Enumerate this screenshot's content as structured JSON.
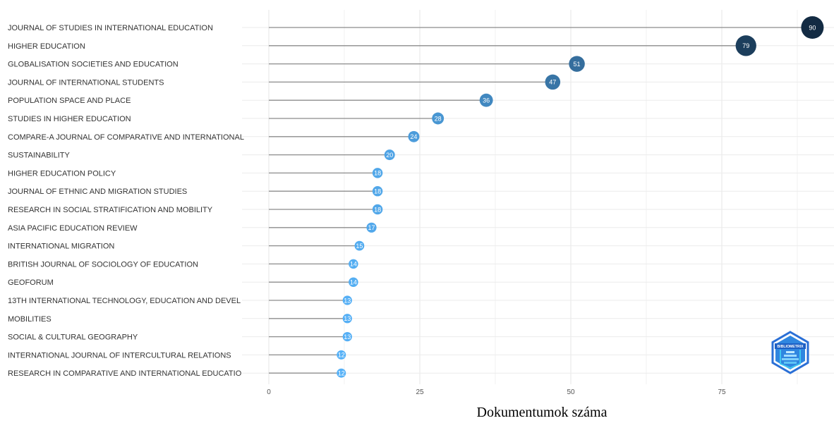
{
  "chart_data": {
    "type": "lollipop",
    "title": "",
    "xlabel": "Dokumentumok száma",
    "ylabel": "",
    "xlim": [
      0,
      93
    ],
    "xticks": [
      0,
      25,
      50,
      75
    ],
    "grid": true,
    "legend": "none",
    "color_scale": {
      "low": "#56b1f7",
      "high": "#132b43"
    },
    "line_color": "#8c8c8c",
    "categories": [
      "JOURNAL OF STUDIES IN INTERNATIONAL EDUCATION",
      "HIGHER EDUCATION",
      "GLOBALISATION SOCIETIES AND EDUCATION",
      "JOURNAL OF INTERNATIONAL STUDENTS",
      "POPULATION SPACE AND PLACE",
      "STUDIES IN HIGHER EDUCATION",
      "COMPARE-A JOURNAL OF COMPARATIVE AND INTERNATIONAL",
      "SUSTAINABILITY",
      "HIGHER EDUCATION POLICY",
      "JOURNAL OF ETHNIC AND MIGRATION STUDIES",
      "RESEARCH IN SOCIAL STRATIFICATION AND MOBILITY",
      "ASIA PACIFIC EDUCATION REVIEW",
      "INTERNATIONAL MIGRATION",
      "BRITISH JOURNAL OF SOCIOLOGY OF EDUCATION",
      "GEOFORUM",
      "13TH INTERNATIONAL TECHNOLOGY, EDUCATION AND DEVEL",
      "MOBILITIES",
      "SOCIAL & CULTURAL GEOGRAPHY",
      "INTERNATIONAL JOURNAL OF INTERCULTURAL RELATIONS",
      "RESEARCH IN COMPARATIVE AND INTERNATIONAL EDUCATIO"
    ],
    "values": [
      90,
      79,
      51,
      47,
      36,
      28,
      24,
      20,
      18,
      18,
      18,
      17,
      15,
      14,
      14,
      13,
      13,
      13,
      12,
      12
    ]
  },
  "logo": {
    "text": "BIBLIOMETRIX",
    "colors": [
      "#2a6fd6",
      "#3ec7f0"
    ]
  }
}
